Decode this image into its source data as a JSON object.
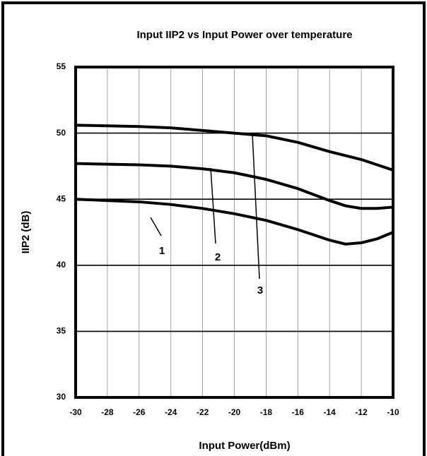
{
  "chart_data": {
    "type": "line",
    "title": "Input IIP2 vs Input Power over temperature",
    "xlabel": "Input Power(dBm)",
    "ylabel": "IIP2 (dB)",
    "x": [
      -30,
      -28,
      -26,
      -24,
      -22,
      -20,
      -18,
      -16,
      -14,
      -13,
      -12,
      -11,
      -10
    ],
    "series": [
      {
        "label": "1",
        "color": "#000000",
        "values": [
          45.0,
          44.9,
          44.8,
          44.6,
          44.3,
          43.9,
          43.4,
          42.7,
          41.9,
          41.6,
          41.7,
          42.0,
          42.5
        ]
      },
      {
        "label": "2",
        "color": "#000000",
        "values": [
          47.7,
          47.65,
          47.6,
          47.5,
          47.3,
          47.0,
          46.5,
          45.8,
          44.9,
          44.5,
          44.3,
          44.3,
          44.4
        ]
      },
      {
        "label": "3",
        "color": "#000000",
        "values": [
          50.6,
          50.55,
          50.5,
          50.4,
          50.2,
          50.0,
          49.8,
          49.3,
          48.6,
          48.3,
          48.0,
          47.6,
          47.2
        ]
      }
    ],
    "xlim": [
      -30,
      -10
    ],
    "ylim": [
      30,
      55
    ],
    "xticks": [
      -30,
      -28,
      -26,
      -24,
      -22,
      -20,
      -18,
      -16,
      -14,
      -12,
      -10
    ],
    "yticks": [
      30,
      35,
      40,
      45,
      50,
      55
    ],
    "grid": true
  }
}
